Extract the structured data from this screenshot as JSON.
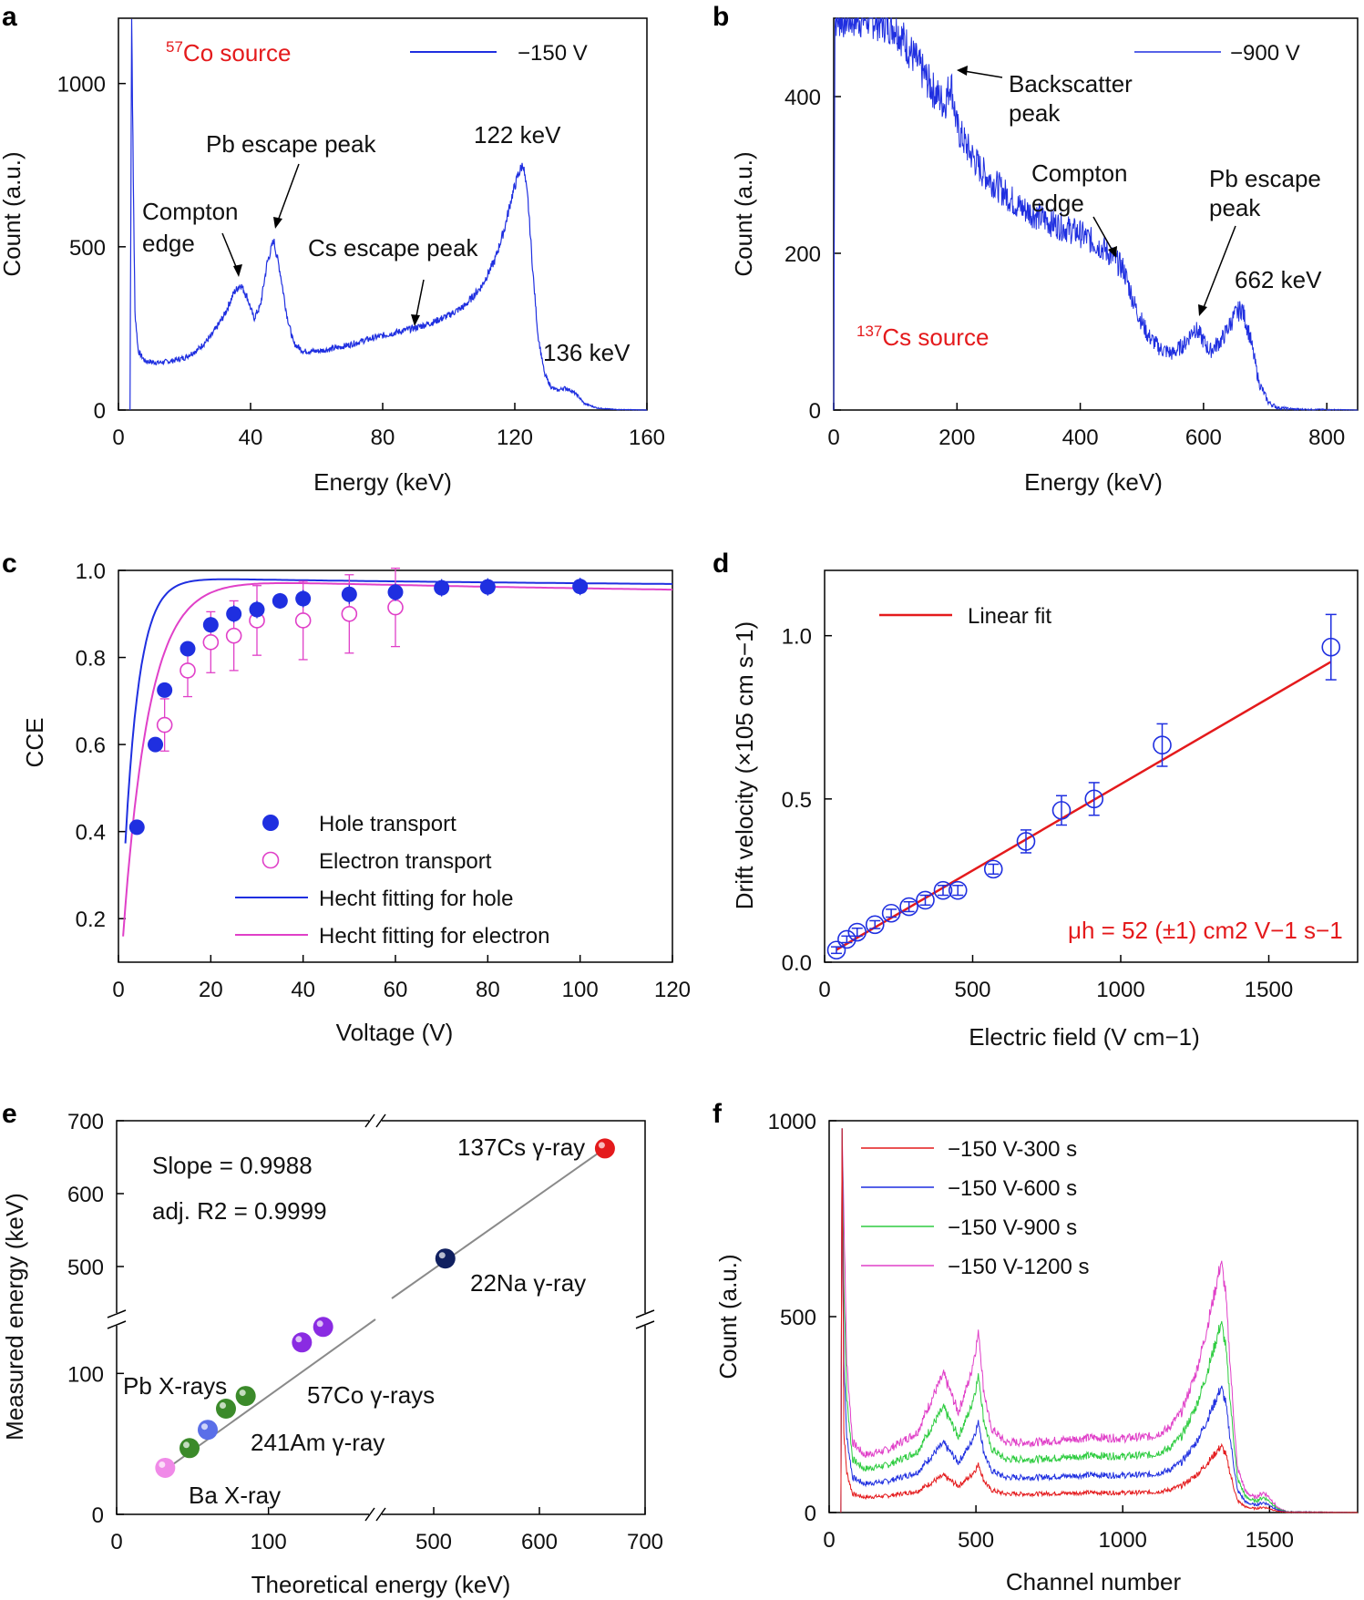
{
  "colors": {
    "blue": "#1f2fe0",
    "red": "#e41a1c",
    "magenta": "#e040c8",
    "green": "#2ecc40",
    "navy": "#102060",
    "purple": "#8a2be2",
    "pb_green": "#3b8a2a",
    "am_blue": "#5a6fe8",
    "ba_pink": "#f08ae8",
    "gray": "#8a8a8a"
  },
  "chart_data": [
    {
      "panel": "a",
      "type": "line",
      "xlabel": "Energy (keV)",
      "ylabel": "Count (a.u.)",
      "xlim": [
        0,
        160
      ],
      "ylim": [
        0,
        1200
      ],
      "xticks": [
        0,
        40,
        80,
        120,
        160
      ],
      "yticks": [
        0,
        500,
        1000
      ],
      "legend": "−150 V",
      "source_label": {
        "sup": "57",
        "text": "Co source"
      },
      "annotations": [
        "Compton",
        "edge",
        "Pb escape peak",
        "Cs escape peak",
        "122 keV",
        "136 keV"
      ],
      "series": [
        {
          "name": "−150 V",
          "x": [
            3.5,
            4,
            4.5,
            5,
            6,
            8,
            12,
            16,
            20,
            24,
            28,
            32,
            35,
            37,
            39,
            41,
            43,
            45,
            47,
            49,
            51,
            53,
            56,
            60,
            65,
            70,
            75,
            80,
            85,
            90,
            95,
            100,
            105,
            110,
            114,
            117,
            119,
            121,
            122.5,
            124,
            125.5,
            127,
            129,
            131,
            133,
            135,
            137,
            139,
            141,
            145,
            150,
            160
          ],
          "y": [
            0,
            1200,
            700,
            300,
            180,
            150,
            145,
            150,
            160,
            185,
            225,
            290,
            360,
            385,
            345,
            280,
            320,
            450,
            520,
            420,
            290,
            205,
            180,
            180,
            188,
            200,
            215,
            228,
            240,
            252,
            268,
            290,
            320,
            380,
            460,
            560,
            650,
            720,
            755,
            640,
            420,
            230,
            110,
            70,
            60,
            68,
            60,
            45,
            20,
            6,
            2,
            0
          ]
        }
      ]
    },
    {
      "panel": "b",
      "type": "line",
      "xlabel": "Energy (keV)",
      "ylabel": "Count (a.u.)",
      "xlim": [
        0,
        850
      ],
      "ylim": [
        0,
        500
      ],
      "xticks": [
        0,
        200,
        400,
        600,
        800
      ],
      "yticks": [
        0,
        200,
        400
      ],
      "legend": "−900 V",
      "source_label": {
        "sup": "137",
        "text": "Cs source"
      },
      "annotations": [
        "Backscatter",
        "peak",
        "Compton",
        "edge",
        "Pb escape",
        "peak",
        "662 keV"
      ],
      "series": [
        {
          "name": "−900 V",
          "x": [
            0,
            2,
            4,
            60,
            100,
            130,
            160,
            180,
            190,
            200,
            220,
            240,
            260,
            300,
            350,
            400,
            440,
            470,
            490,
            510,
            530,
            550,
            570,
            585,
            595,
            610,
            630,
            650,
            662,
            675,
            690,
            705,
            720,
            750,
            850
          ],
          "y": [
            0,
            500,
            500,
            500,
            490,
            450,
            410,
            390,
            420,
            360,
            330,
            305,
            290,
            260,
            240,
            225,
            205,
            180,
            130,
            95,
            78,
            72,
            85,
            105,
            95,
            75,
            90,
            120,
            130,
            95,
            35,
            10,
            3,
            1,
            0
          ]
        }
      ]
    },
    {
      "panel": "c",
      "type": "scatter",
      "xlabel": "Voltage (V)",
      "ylabel": "CCE",
      "xlim": [
        0,
        120
      ],
      "ylim": [
        0.1,
        1.0
      ],
      "xticks": [
        0,
        20,
        40,
        60,
        80,
        100,
        120
      ],
      "yticks": [
        0.2,
        0.4,
        0.6,
        0.8,
        1.0
      ],
      "legend_entries": [
        "Hole transport",
        "Electron transport",
        "Hecht fitting for hole",
        "Hecht fitting for electron"
      ],
      "series": [
        {
          "name": "Hole transport",
          "x": [
            4,
            8,
            10,
            15,
            20,
            25,
            30,
            35,
            40,
            50,
            60,
            70,
            80,
            100
          ],
          "y": [
            0.41,
            0.6,
            0.725,
            0.82,
            0.875,
            0.9,
            0.91,
            0.93,
            0.935,
            0.945,
            0.95,
            0.96,
            0.962,
            0.963
          ],
          "err": [
            0.01,
            0.012,
            0.012,
            0.015,
            0.018,
            0.02,
            0.02,
            0.018,
            0.02,
            0.022,
            0.02,
            0.02,
            0.02,
            0.02
          ]
        },
        {
          "name": "Electron transport",
          "x": [
            10,
            15,
            20,
            25,
            30,
            40,
            50,
            60
          ],
          "y": [
            0.645,
            0.77,
            0.835,
            0.85,
            0.885,
            0.885,
            0.9,
            0.915
          ],
          "err": [
            0.06,
            0.06,
            0.07,
            0.08,
            0.08,
            0.09,
            0.09,
            0.09
          ]
        }
      ],
      "fit_params": {
        "hole_k": 0.75,
        "electron_k": 1.35,
        "hole_vmin": 1.5,
        "electron_vmin": 1.0
      }
    },
    {
      "panel": "d",
      "type": "scatter",
      "xlabel": "Electric field (V cm−1)",
      "ylabel": "Drift velocity (×105 cm s−1)",
      "xlim": [
        0,
        1800
      ],
      "ylim": [
        0,
        1.2
      ],
      "xticks": [
        0,
        500,
        1000,
        1500
      ],
      "yticks": [
        0.0,
        0.5,
        1.0
      ],
      "legend": "Linear fit",
      "mobility_label": "μh = 52 (±1) cm2 V−1 s−1",
      "series": [
        {
          "name": "data",
          "x": [
            40,
            75,
            110,
            170,
            225,
            285,
            340,
            400,
            450,
            570,
            680,
            800,
            910,
            1140,
            1710
          ],
          "y": [
            0.037,
            0.07,
            0.092,
            0.115,
            0.15,
            0.17,
            0.19,
            0.22,
            0.22,
            0.285,
            0.37,
            0.465,
            0.5,
            0.665,
            0.965
          ],
          "err": [
            0.01,
            0.01,
            0.012,
            0.012,
            0.012,
            0.015,
            0.015,
            0.015,
            0.015,
            0.015,
            0.035,
            0.045,
            0.05,
            0.065,
            0.1
          ]
        },
        {
          "name": "Linear fit",
          "x": [
            40,
            1710
          ],
          "y": [
            0.038,
            0.92
          ]
        }
      ]
    },
    {
      "panel": "e",
      "type": "scatter",
      "xlabel": "Theoretical energy (keV)",
      "ylabel": "Measured energy (keV)",
      "xticks": [
        0,
        100,
        500,
        600,
        700
      ],
      "yticks": [
        0,
        100,
        500,
        600,
        700
      ],
      "slope_text": "Slope = 0.9988",
      "r2_text": "adj. R2 = 0.9999",
      "point_labels": [
        "137Cs γ-ray",
        "22Na γ-ray",
        "Pb X-rays",
        "57Co γ-rays",
        "241Am γ-ray",
        "Ba X-ray"
      ],
      "series": [
        {
          "name": "Ba X-ray",
          "x": [
            32
          ],
          "y": [
            33
          ]
        },
        {
          "name": "Pb X-rays",
          "x": [
            48,
            72,
            85
          ],
          "y": [
            47,
            75,
            84
          ]
        },
        {
          "name": "241Am γ-ray",
          "x": [
            60
          ],
          "y": [
            60
          ]
        },
        {
          "name": "57Co γ-rays",
          "x": [
            122,
            136
          ],
          "y": [
            122,
            133
          ]
        },
        {
          "name": "22Na γ-ray",
          "x": [
            511
          ],
          "y": [
            511
          ]
        },
        {
          "name": "137Cs γ-ray",
          "x": [
            662
          ],
          "y": [
            662
          ]
        }
      ]
    },
    {
      "panel": "f",
      "type": "line",
      "xlabel": "Channel number",
      "ylabel": "Count (a.u.)",
      "xlim": [
        0,
        1800
      ],
      "ylim": [
        0,
        1000
      ],
      "xticks": [
        0,
        500,
        1000,
        1500
      ],
      "yticks": [
        0,
        500,
        1000
      ],
      "legend_entries": [
        "−150 V-300 s",
        "−150 V-600 s",
        "−150 V-900 s",
        "−150 V-1200 s"
      ],
      "base_shape": {
        "x": [
          40,
          44,
          50,
          60,
          80,
          120,
          200,
          300,
          360,
          390,
          410,
          440,
          480,
          500,
          510,
          525,
          550,
          600,
          700,
          800,
          900,
          1000,
          1100,
          1150,
          1200,
          1250,
          1280,
          1310,
          1335,
          1350,
          1370,
          1390,
          1420,
          1450,
          1480,
          1500,
          1530,
          1560,
          1800
        ],
        "y": [
          0,
          1000,
          600,
          300,
          140,
          115,
          125,
          160,
          240,
          275,
          245,
          200,
          270,
          330,
          360,
          250,
          170,
          140,
          140,
          145,
          150,
          148,
          152,
          165,
          200,
          280,
          350,
          430,
          500,
          440,
          260,
          90,
          40,
          30,
          40,
          30,
          8,
          2,
          0
        ]
      },
      "series_scale": [
        0.34,
        0.64,
        0.97,
        1.28
      ]
    }
  ]
}
